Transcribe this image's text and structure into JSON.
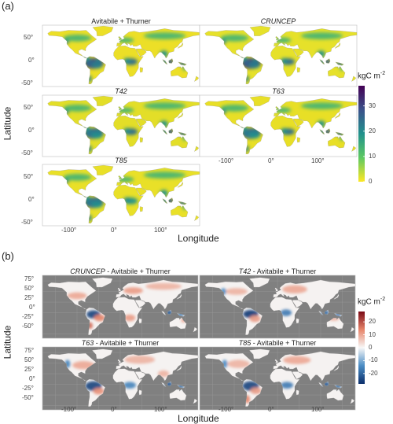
{
  "figure": {
    "panel_a_label": "(a)",
    "panel_b_label": "(b)"
  },
  "chart_data": [
    {
      "type": "heatmap",
      "panel": "(a)",
      "maps": [
        {
          "title": "Avitabile + Thurner",
          "italic": false
        },
        {
          "title": "CRUNCEP",
          "italic": true
        },
        {
          "title": "T42",
          "italic": true
        },
        {
          "title": "T63",
          "italic": true
        },
        {
          "title": "T85",
          "italic": true
        }
      ],
      "xlabel": "Longitude",
      "ylabel": "Latitude",
      "x_ticks": [
        "-100°",
        "0°",
        "100°"
      ],
      "y_ticks": [
        "50°",
        "0°",
        "-50°"
      ],
      "colorbar": {
        "title": "kgC m",
        "title_sup": "-2",
        "ticks": [
          30,
          20,
          10,
          0
        ],
        "range": [
          0,
          38
        ],
        "colors": [
          "#fde725",
          "#5ec962",
          "#21918c",
          "#3b528b",
          "#440154"
        ]
      },
      "background": "#ffffff"
    },
    {
      "type": "heatmap",
      "panel": "(b)",
      "maps": [
        {
          "title_italic": "CRUNCEP",
          "title_rest": " - Avitabile + Thurner"
        },
        {
          "title_italic": "T42",
          "title_rest": " - Avitabile + Thurner"
        },
        {
          "title_italic": "T63",
          "title_rest": " - Avitabile + Thurner"
        },
        {
          "title_italic": "T85",
          "title_rest": " - Avitabile + Thurner"
        }
      ],
      "xlabel": "Longitude",
      "ylabel": "Latitude",
      "x_ticks": [
        "-100°",
        "0°",
        "100°"
      ],
      "y_ticks": [
        "75°",
        "50°",
        "25°",
        "0°",
        "-25°",
        "-50°"
      ],
      "colorbar": {
        "title": "kgC m",
        "title_sup": "-2",
        "ticks": [
          20,
          10,
          0,
          -10,
          -20
        ],
        "range": [
          -28,
          28
        ],
        "colors": [
          "#0b2f6b",
          "#4a8cc4",
          "#f7f7f7",
          "#e7846a",
          "#7a0a16"
        ]
      },
      "background": "#808080"
    }
  ]
}
